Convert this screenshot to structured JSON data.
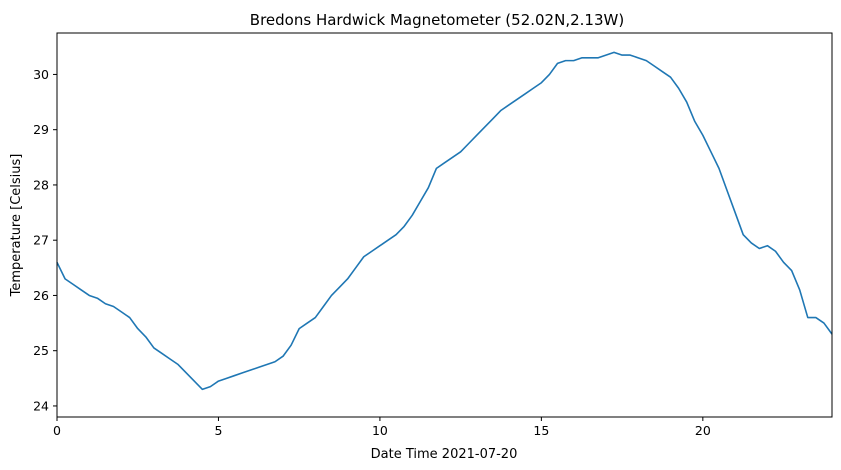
{
  "chart_data": {
    "type": "line",
    "title": "Bredons Hardwick Magnetometer (52.02N,2.13W)",
    "xlabel": "Date Time 2021-07-20",
    "ylabel": "Temperature [Celsius]",
    "xlim": [
      0,
      24
    ],
    "ylim": [
      23.8,
      30.75
    ],
    "xticks": [
      0,
      5,
      10,
      15,
      20
    ],
    "yticks": [
      24,
      25,
      26,
      27,
      28,
      29,
      30
    ],
    "grid": false,
    "series": [
      {
        "color": "#1f77b4",
        "x": [
          0,
          0.25,
          0.5,
          0.75,
          1.0,
          1.25,
          1.5,
          1.75,
          2.0,
          2.25,
          2.5,
          2.75,
          3.0,
          3.25,
          3.5,
          3.75,
          4.0,
          4.25,
          4.5,
          4.75,
          5.0,
          5.25,
          5.5,
          5.75,
          6.0,
          6.25,
          6.5,
          6.75,
          7.0,
          7.25,
          7.5,
          7.75,
          8.0,
          8.25,
          8.5,
          8.75,
          9.0,
          9.25,
          9.5,
          9.75,
          10.0,
          10.25,
          10.5,
          10.75,
          11.0,
          11.25,
          11.5,
          11.75,
          12.0,
          12.25,
          12.5,
          12.75,
          13.0,
          13.25,
          13.5,
          13.75,
          14.0,
          14.25,
          14.5,
          14.75,
          15.0,
          15.25,
          15.5,
          15.75,
          16.0,
          16.25,
          16.5,
          16.75,
          17.0,
          17.25,
          17.5,
          17.75,
          18.0,
          18.25,
          18.5,
          18.75,
          19.0,
          19.25,
          19.5,
          19.75,
          20.0,
          20.25,
          20.5,
          20.75,
          21.0,
          21.25,
          21.5,
          21.75,
          22.0,
          22.25,
          22.5,
          22.75,
          23.0,
          23.25,
          23.5,
          23.75,
          24.0
        ],
        "y": [
          26.6,
          26.3,
          26.2,
          26.1,
          26.0,
          25.95,
          25.85,
          25.8,
          25.7,
          25.6,
          25.4,
          25.25,
          25.05,
          24.95,
          24.85,
          24.75,
          24.6,
          24.45,
          24.3,
          24.35,
          24.45,
          24.5,
          24.55,
          24.6,
          24.65,
          24.7,
          24.75,
          24.8,
          24.9,
          25.1,
          25.4,
          25.5,
          25.6,
          25.8,
          26.0,
          26.15,
          26.3,
          26.5,
          26.7,
          26.8,
          26.9,
          27.0,
          27.1,
          27.25,
          27.45,
          27.7,
          27.95,
          28.3,
          28.4,
          28.5,
          28.6,
          28.75,
          28.9,
          29.05,
          29.2,
          29.35,
          29.45,
          29.55,
          29.65,
          29.75,
          29.85,
          30.0,
          30.2,
          30.25,
          30.25,
          30.3,
          30.3,
          30.3,
          30.35,
          30.4,
          30.35,
          30.35,
          30.3,
          30.25,
          30.15,
          30.05,
          29.95,
          29.75,
          29.5,
          29.15,
          28.9,
          28.6,
          28.3,
          27.9,
          27.5,
          27.1,
          26.95,
          26.85,
          26.9,
          26.8,
          26.6,
          26.45,
          26.1,
          25.6,
          25.6,
          25.5,
          25.3
        ]
      }
    ]
  }
}
